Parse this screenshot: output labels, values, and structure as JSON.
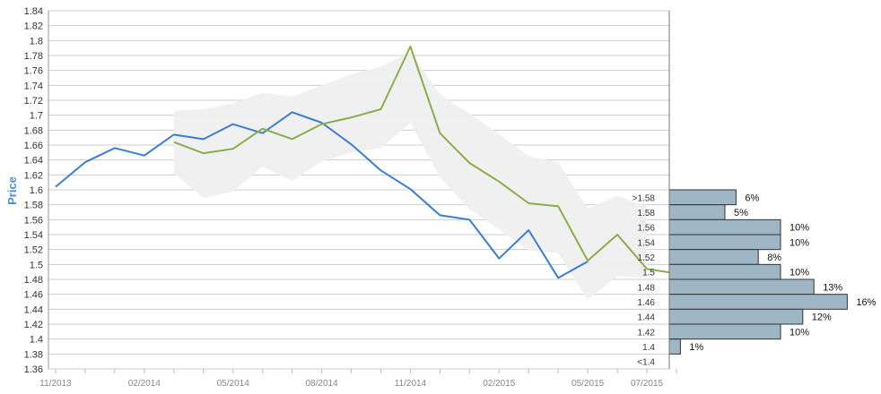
{
  "chart_data": {
    "type": "line",
    "ylabel": "Price",
    "ylim": [
      1.36,
      1.84
    ],
    "y_ticks": [
      "1.36",
      "1.38",
      "1.4",
      "1.42",
      "1.44",
      "1.46",
      "1.48",
      "1.5",
      "1.52",
      "1.54",
      "1.56",
      "1.58",
      "1.6",
      "1.62",
      "1.64",
      "1.66",
      "1.68",
      "1.7",
      "1.72",
      "1.74",
      "1.76",
      "1.78",
      "1.8",
      "1.82",
      "1.84"
    ],
    "x_tick_labels": [
      "11/2013",
      "02/2014",
      "05/2014",
      "08/2014",
      "11/2014",
      "02/2015",
      "05/2015",
      "07/2015"
    ],
    "x_ticks": [
      0,
      3,
      6,
      9,
      12,
      15,
      18,
      20
    ],
    "grid": true,
    "colors": {
      "actual": "#3a7fcf",
      "forecast": "#8aad4a",
      "band": "#efefef",
      "histogram": "#9fb6c4",
      "grid": "#cccccc"
    },
    "series": [
      {
        "x": [
          0,
          1,
          2,
          3,
          4,
          5,
          6,
          7,
          8,
          9,
          10,
          11,
          12,
          13,
          14,
          15,
          16,
          17,
          18
        ],
        "values": [
          1.604,
          1.637,
          1.656,
          1.646,
          1.674,
          1.668,
          1.688,
          1.676,
          1.704,
          1.69,
          1.661,
          1.626,
          1.601,
          1.566,
          1.56,
          1.508,
          1.546,
          1.482,
          1.504
        ]
      },
      {
        "x": [
          4,
          5,
          6,
          7,
          8,
          9,
          10,
          11,
          12,
          13,
          14,
          15,
          16,
          17,
          18,
          19,
          20,
          21
        ],
        "values": [
          1.664,
          1.649,
          1.655,
          1.682,
          1.668,
          1.688,
          1.697,
          1.708,
          1.792,
          1.676,
          1.636,
          1.611,
          1.582,
          1.578,
          1.505,
          1.54,
          1.494,
          1.488
        ]
      }
    ],
    "band": {
      "x": [
        4,
        5,
        6,
        7,
        8,
        9,
        10,
        11,
        12,
        13,
        14,
        15,
        16,
        17,
        18,
        19,
        20
      ],
      "upper": [
        1.706,
        1.708,
        1.716,
        1.73,
        1.725,
        1.74,
        1.755,
        1.765,
        1.785,
        1.728,
        1.702,
        1.675,
        1.645,
        1.637,
        1.575,
        1.592,
        1.578
      ],
      "lower": [
        1.622,
        1.589,
        1.598,
        1.631,
        1.612,
        1.638,
        1.65,
        1.656,
        1.69,
        1.617,
        1.574,
        1.547,
        1.519,
        1.515,
        1.453,
        1.484,
        1.482
      ]
    },
    "histogram": {
      "bins": [
        ">1.58",
        "1.58",
        "1.56",
        "1.54",
        "1.52",
        "1.5",
        "1.48",
        "1.46",
        "1.44",
        "1.42",
        "1.4",
        "<1.4"
      ],
      "percent": [
        6,
        5,
        10,
        10,
        8,
        10,
        13,
        16,
        12,
        10,
        1,
        0
      ],
      "labels": [
        "6%",
        "5%",
        "10%",
        "10%",
        "8%",
        "10%",
        "13%",
        "16%",
        "12%",
        "10%",
        "1%",
        ""
      ]
    }
  }
}
